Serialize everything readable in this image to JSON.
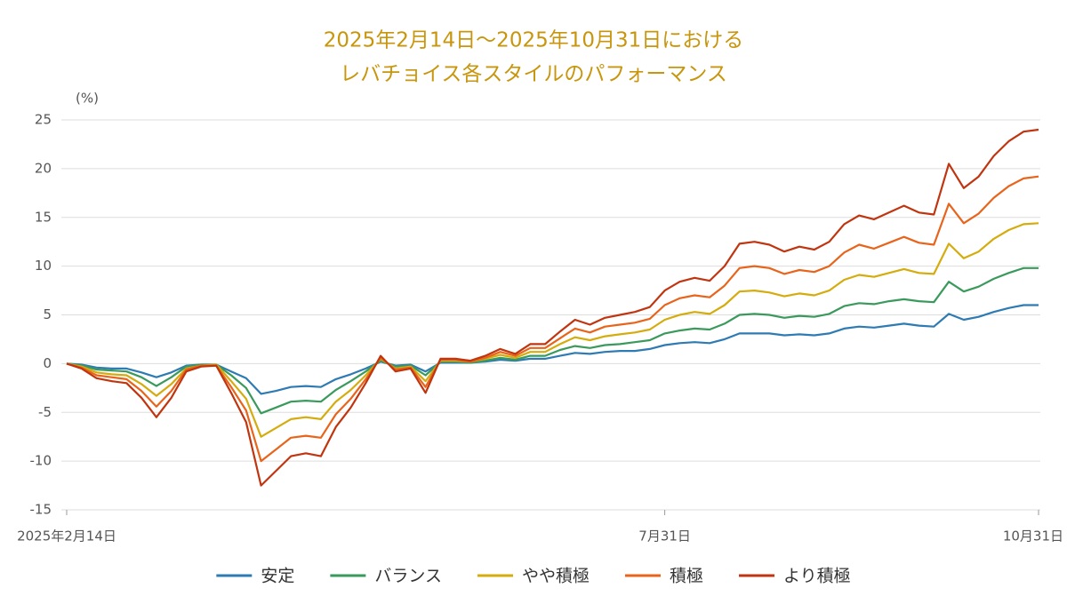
{
  "chart_data": {
    "type": "line",
    "title": [
      "2025年2月14日〜2025年10月31日における",
      "レバチョイス各スタイルのパフォーマンス"
    ],
    "y_unit": "(%)",
    "categories": [
      "2025年2月14日",
      null,
      null,
      null,
      null,
      null,
      null,
      null,
      null,
      null,
      null,
      null,
      null,
      null,
      null,
      null,
      null,
      null,
      null,
      null,
      null,
      null,
      null,
      null,
      null,
      null,
      null,
      null,
      null,
      null,
      null,
      null,
      null,
      null,
      null,
      null,
      null,
      null,
      null,
      null,
      "7月31日",
      null,
      null,
      null,
      null,
      null,
      null,
      null,
      null,
      null,
      null,
      null,
      null,
      null,
      null,
      null,
      null,
      null,
      null,
      null,
      null,
      null,
      null,
      null,
      null,
      "10月31日"
    ],
    "ylim": [
      -15,
      25
    ],
    "yticks": [
      -15,
      -10,
      -5,
      0,
      5,
      10,
      15,
      20,
      25
    ],
    "grid": true,
    "legend": "bottom",
    "series": [
      {
        "name": "安定",
        "color": "#2e7bb4",
        "values": [
          0,
          -0.1,
          -0.4,
          -0.5,
          -0.5,
          -0.9,
          -1.4,
          -0.9,
          -0.2,
          -0.1,
          -0.1,
          -0.8,
          -1.5,
          -3.1,
          -2.8,
          -2.4,
          -2.3,
          -2.4,
          -1.6,
          -1.1,
          -0.5,
          0.2,
          -0.2,
          -0.1,
          -0.8,
          0.1,
          0.1,
          0.1,
          0.2,
          0.4,
          0.3,
          0.5,
          0.5,
          0.8,
          1.1,
          1,
          1.2,
          1.3,
          1.3,
          1.5,
          1.9,
          2.1,
          2.2,
          2.1,
          2.5,
          3.1,
          3.1,
          3.1,
          2.9,
          3,
          2.9,
          3.1,
          3.6,
          3.8,
          3.7,
          3.9,
          4.1,
          3.9,
          3.8,
          5.1,
          4.5,
          4.8,
          5.3,
          5.7,
          6,
          6
        ]
      },
      {
        "name": "バランス",
        "color": "#3a9a5c",
        "values": [
          0,
          -0.2,
          -0.6,
          -0.7,
          -0.8,
          -1.4,
          -2.3,
          -1.4,
          -0.3,
          -0.1,
          -0.1,
          -1.2,
          -2.5,
          -5.1,
          -4.5,
          -3.9,
          -3.8,
          -3.9,
          -2.7,
          -1.8,
          -0.8,
          0.3,
          -0.3,
          -0.2,
          -1.2,
          0.2,
          0.2,
          0.1,
          0.3,
          0.6,
          0.4,
          0.8,
          0.8,
          1.4,
          1.8,
          1.6,
          1.9,
          2,
          2.2,
          2.4,
          3.1,
          3.4,
          3.6,
          3.5,
          4.1,
          5,
          5.1,
          5,
          4.7,
          4.9,
          4.8,
          5.1,
          5.9,
          6.2,
          6.1,
          6.4,
          6.6,
          6.4,
          6.3,
          8.4,
          7.4,
          7.9,
          8.7,
          9.3,
          9.8,
          9.8
        ]
      },
      {
        "name": "やや積極",
        "color": "#d4ac0d",
        "values": [
          0,
          -0.3,
          -0.9,
          -1.1,
          -1.2,
          -2.1,
          -3.3,
          -2.1,
          -0.5,
          -0.2,
          -0.1,
          -1.8,
          -3.6,
          -7.5,
          -6.6,
          -5.7,
          -5.5,
          -5.7,
          -3.9,
          -2.7,
          -1.2,
          0.5,
          -0.5,
          -0.3,
          -1.8,
          0.3,
          0.3,
          0.2,
          0.5,
          0.9,
          0.6,
          1.2,
          1.2,
          2,
          2.7,
          2.4,
          2.8,
          3,
          3.2,
          3.5,
          4.5,
          5,
          5.3,
          5.1,
          6,
          7.4,
          7.5,
          7.3,
          6.9,
          7.2,
          7,
          7.5,
          8.6,
          9.1,
          8.9,
          9.3,
          9.7,
          9.3,
          9.2,
          12.3,
          10.8,
          11.5,
          12.8,
          13.7,
          14.3,
          14.4
        ]
      },
      {
        "name": "積極",
        "color": "#e8641b",
        "values": [
          0,
          -0.4,
          -1.2,
          -1.4,
          -1.6,
          -2.8,
          -4.4,
          -2.8,
          -0.6,
          -0.2,
          -0.2,
          -2.4,
          -4.8,
          -10,
          -8.8,
          -7.6,
          -7.4,
          -7.6,
          -5.2,
          -3.6,
          -1.6,
          0.6,
          -0.6,
          -0.4,
          -2.4,
          0.4,
          0.4,
          0.2,
          0.6,
          1.2,
          0.8,
          1.6,
          1.6,
          2.6,
          3.6,
          3.2,
          3.8,
          4,
          4.2,
          4.6,
          6,
          6.7,
          7,
          6.8,
          8,
          9.8,
          10,
          9.8,
          9.2,
          9.6,
          9.4,
          10,
          11.4,
          12.2,
          11.8,
          12.4,
          13,
          12.4,
          12.2,
          16.4,
          14.4,
          15.4,
          17,
          18.2,
          19,
          19.2
        ]
      },
      {
        "name": "より積極",
        "color": "#c0350f",
        "values": [
          0,
          -0.5,
          -1.5,
          -1.8,
          -2,
          -3.5,
          -5.5,
          -3.5,
          -0.8,
          -0.3,
          -0.2,
          -3,
          -6,
          -12.5,
          -11,
          -9.5,
          -9.2,
          -9.5,
          -6.5,
          -4.5,
          -2,
          0.8,
          -0.8,
          -0.5,
          -3,
          0.5,
          0.5,
          0.3,
          0.8,
          1.5,
          1,
          2,
          2,
          3.3,
          4.5,
          4,
          4.7,
          5,
          5.3,
          5.8,
          7.5,
          8.4,
          8.8,
          8.5,
          10,
          12.3,
          12.5,
          12.2,
          11.5,
          12,
          11.7,
          12.5,
          14.3,
          15.2,
          14.8,
          15.5,
          16.2,
          15.5,
          15.3,
          20.5,
          18,
          19.2,
          21.3,
          22.8,
          23.8,
          24
        ]
      }
    ]
  }
}
